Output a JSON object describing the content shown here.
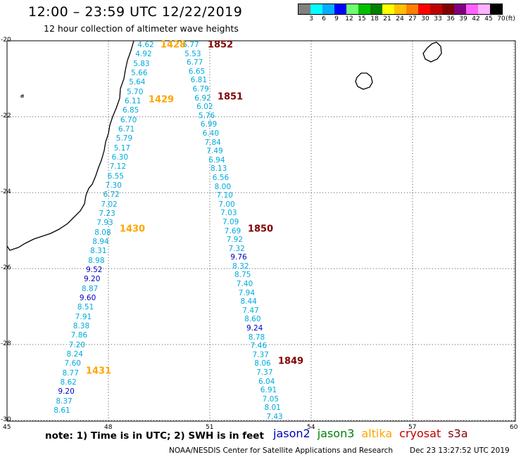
{
  "title": "12:00 – 23:59 UTC 12/22/2019",
  "subtitle": "12 hour collection of altimeter wave heights",
  "scale": {
    "colors": [
      "#808080",
      "#00ffff",
      "#00b0ff",
      "#0000ff",
      "#70ff70",
      "#00c000",
      "#008000",
      "#ffff00",
      "#ffc000",
      "#ff8000",
      "#ff0000",
      "#c00000",
      "#800000",
      "#800080",
      "#ff60ff",
      "#ffb0ff",
      "#000000"
    ],
    "labels": [
      "3",
      "6",
      "9",
      "12",
      "15",
      "18",
      "21",
      "24",
      "27",
      "30",
      "33",
      "36",
      "39",
      "42",
      "45",
      "70"
    ],
    "unit": "(ft)"
  },
  "axes": {
    "lat_ticks": [
      "-20",
      "-22",
      "-24",
      "-26",
      "-28",
      "-30"
    ],
    "lon_ticks": [
      "45",
      "48",
      "51",
      "54",
      "57",
      "60"
    ]
  },
  "colors": {
    "jason2": "#0000c0",
    "jason3": "#008000",
    "altika": "#ffa500",
    "cryosat": "#c00000",
    "s3a": "#800000",
    "swh_light": "#00aadd",
    "coast": "#000000"
  },
  "track_a": [
    {
      "v": "4.62",
      "c": "light"
    },
    {
      "v": "4.92",
      "c": "light"
    },
    {
      "v": "5.83",
      "c": "light"
    },
    {
      "v": "5.66",
      "c": "light"
    },
    {
      "v": "5.64",
      "c": "light"
    },
    {
      "v": "5.70",
      "c": "light"
    },
    {
      "v": "6.11",
      "c": "light"
    },
    {
      "v": "6.85",
      "c": "light"
    },
    {
      "v": "6.70",
      "c": "light"
    },
    {
      "v": "6.71",
      "c": "light"
    },
    {
      "v": "5.79",
      "c": "light"
    },
    {
      "v": "5.17",
      "c": "light"
    },
    {
      "v": "6.30",
      "c": "light"
    },
    {
      "v": "7.12",
      "c": "light"
    },
    {
      "v": "6.55",
      "c": "light"
    },
    {
      "v": "7.30",
      "c": "light"
    },
    {
      "v": "6.72",
      "c": "light"
    },
    {
      "v": "7.02",
      "c": "light"
    },
    {
      "v": "7.23",
      "c": "light"
    },
    {
      "v": "7.93",
      "c": "light"
    },
    {
      "v": "8.08",
      "c": "light"
    },
    {
      "v": "8.94",
      "c": "light"
    },
    {
      "v": "8.31",
      "c": "light"
    },
    {
      "v": "8.98",
      "c": "light"
    },
    {
      "v": "9.52",
      "c": "dark"
    },
    {
      "v": "9.20",
      "c": "dark"
    },
    {
      "v": "8.87",
      "c": "light"
    },
    {
      "v": "9.60",
      "c": "dark"
    },
    {
      "v": "8.51",
      "c": "light"
    },
    {
      "v": "7.91",
      "c": "light"
    },
    {
      "v": "8.38",
      "c": "light"
    },
    {
      "v": "7.86",
      "c": "light"
    },
    {
      "v": "7.20",
      "c": "light"
    },
    {
      "v": "8.24",
      "c": "light"
    },
    {
      "v": "7.60",
      "c": "light"
    },
    {
      "v": "8.77",
      "c": "light"
    },
    {
      "v": "8.62",
      "c": "light"
    },
    {
      "v": "9.20",
      "c": "dark"
    },
    {
      "v": "8.37",
      "c": "light"
    },
    {
      "v": "8.61",
      "c": "light"
    }
  ],
  "track_b": [
    {
      "v": "6.77",
      "c": "light"
    },
    {
      "v": "5.53",
      "c": "light"
    },
    {
      "v": "6.77",
      "c": "light"
    },
    {
      "v": "6.65",
      "c": "light"
    },
    {
      "v": "6.81",
      "c": "light"
    },
    {
      "v": "6.79",
      "c": "light"
    },
    {
      "v": "6.92",
      "c": "light"
    },
    {
      "v": "6.02",
      "c": "light"
    },
    {
      "v": "5.76",
      "c": "light"
    },
    {
      "v": "6.99",
      "c": "light"
    },
    {
      "v": "6.40",
      "c": "light"
    },
    {
      "v": "7.84",
      "c": "light"
    },
    {
      "v": "7.49",
      "c": "light"
    },
    {
      "v": "6.94",
      "c": "light"
    },
    {
      "v": "8.13",
      "c": "light"
    },
    {
      "v": "6.56",
      "c": "light"
    },
    {
      "v": "8.00",
      "c": "light"
    },
    {
      "v": "7.10",
      "c": "light"
    },
    {
      "v": "7.00",
      "c": "light"
    },
    {
      "v": "7.03",
      "c": "light"
    },
    {
      "v": "7.09",
      "c": "light"
    },
    {
      "v": "7.69",
      "c": "light"
    },
    {
      "v": "7.92",
      "c": "light"
    },
    {
      "v": "7.32",
      "c": "light"
    },
    {
      "v": "9.76",
      "c": "dark"
    },
    {
      "v": "8.32",
      "c": "light"
    },
    {
      "v": "8.75",
      "c": "light"
    },
    {
      "v": "7.40",
      "c": "light"
    },
    {
      "v": "7.94",
      "c": "light"
    },
    {
      "v": "8.44",
      "c": "light"
    },
    {
      "v": "7.47",
      "c": "light"
    },
    {
      "v": "8.60",
      "c": "light"
    },
    {
      "v": "9.24",
      "c": "dark"
    },
    {
      "v": "8.78",
      "c": "light"
    },
    {
      "v": "7.46",
      "c": "light"
    },
    {
      "v": "7.37",
      "c": "light"
    },
    {
      "v": "8.06",
      "c": "light"
    },
    {
      "v": "7.37",
      "c": "light"
    },
    {
      "v": "6.04",
      "c": "light"
    },
    {
      "v": "6.91",
      "c": "light"
    },
    {
      "v": "7.05",
      "c": "light"
    },
    {
      "v": "8.01",
      "c": "light"
    },
    {
      "v": "7.43",
      "c": "light"
    }
  ],
  "time_labels_a": [
    "1428",
    "1429",
    "1430",
    "1431"
  ],
  "time_labels_b": [
    "1852",
    "1851",
    "1850",
    "1849"
  ],
  "note": "note:  1) Time is in UTC;  2) SWH is in feet",
  "legend": [
    "jason2",
    "jason3",
    "altika",
    "cryosat",
    "s3a"
  ],
  "credit": "NOAA/NESDIS Center for Satellite Applications and Research",
  "stamp": "Dec 23 13:27:52 UTC 2019"
}
